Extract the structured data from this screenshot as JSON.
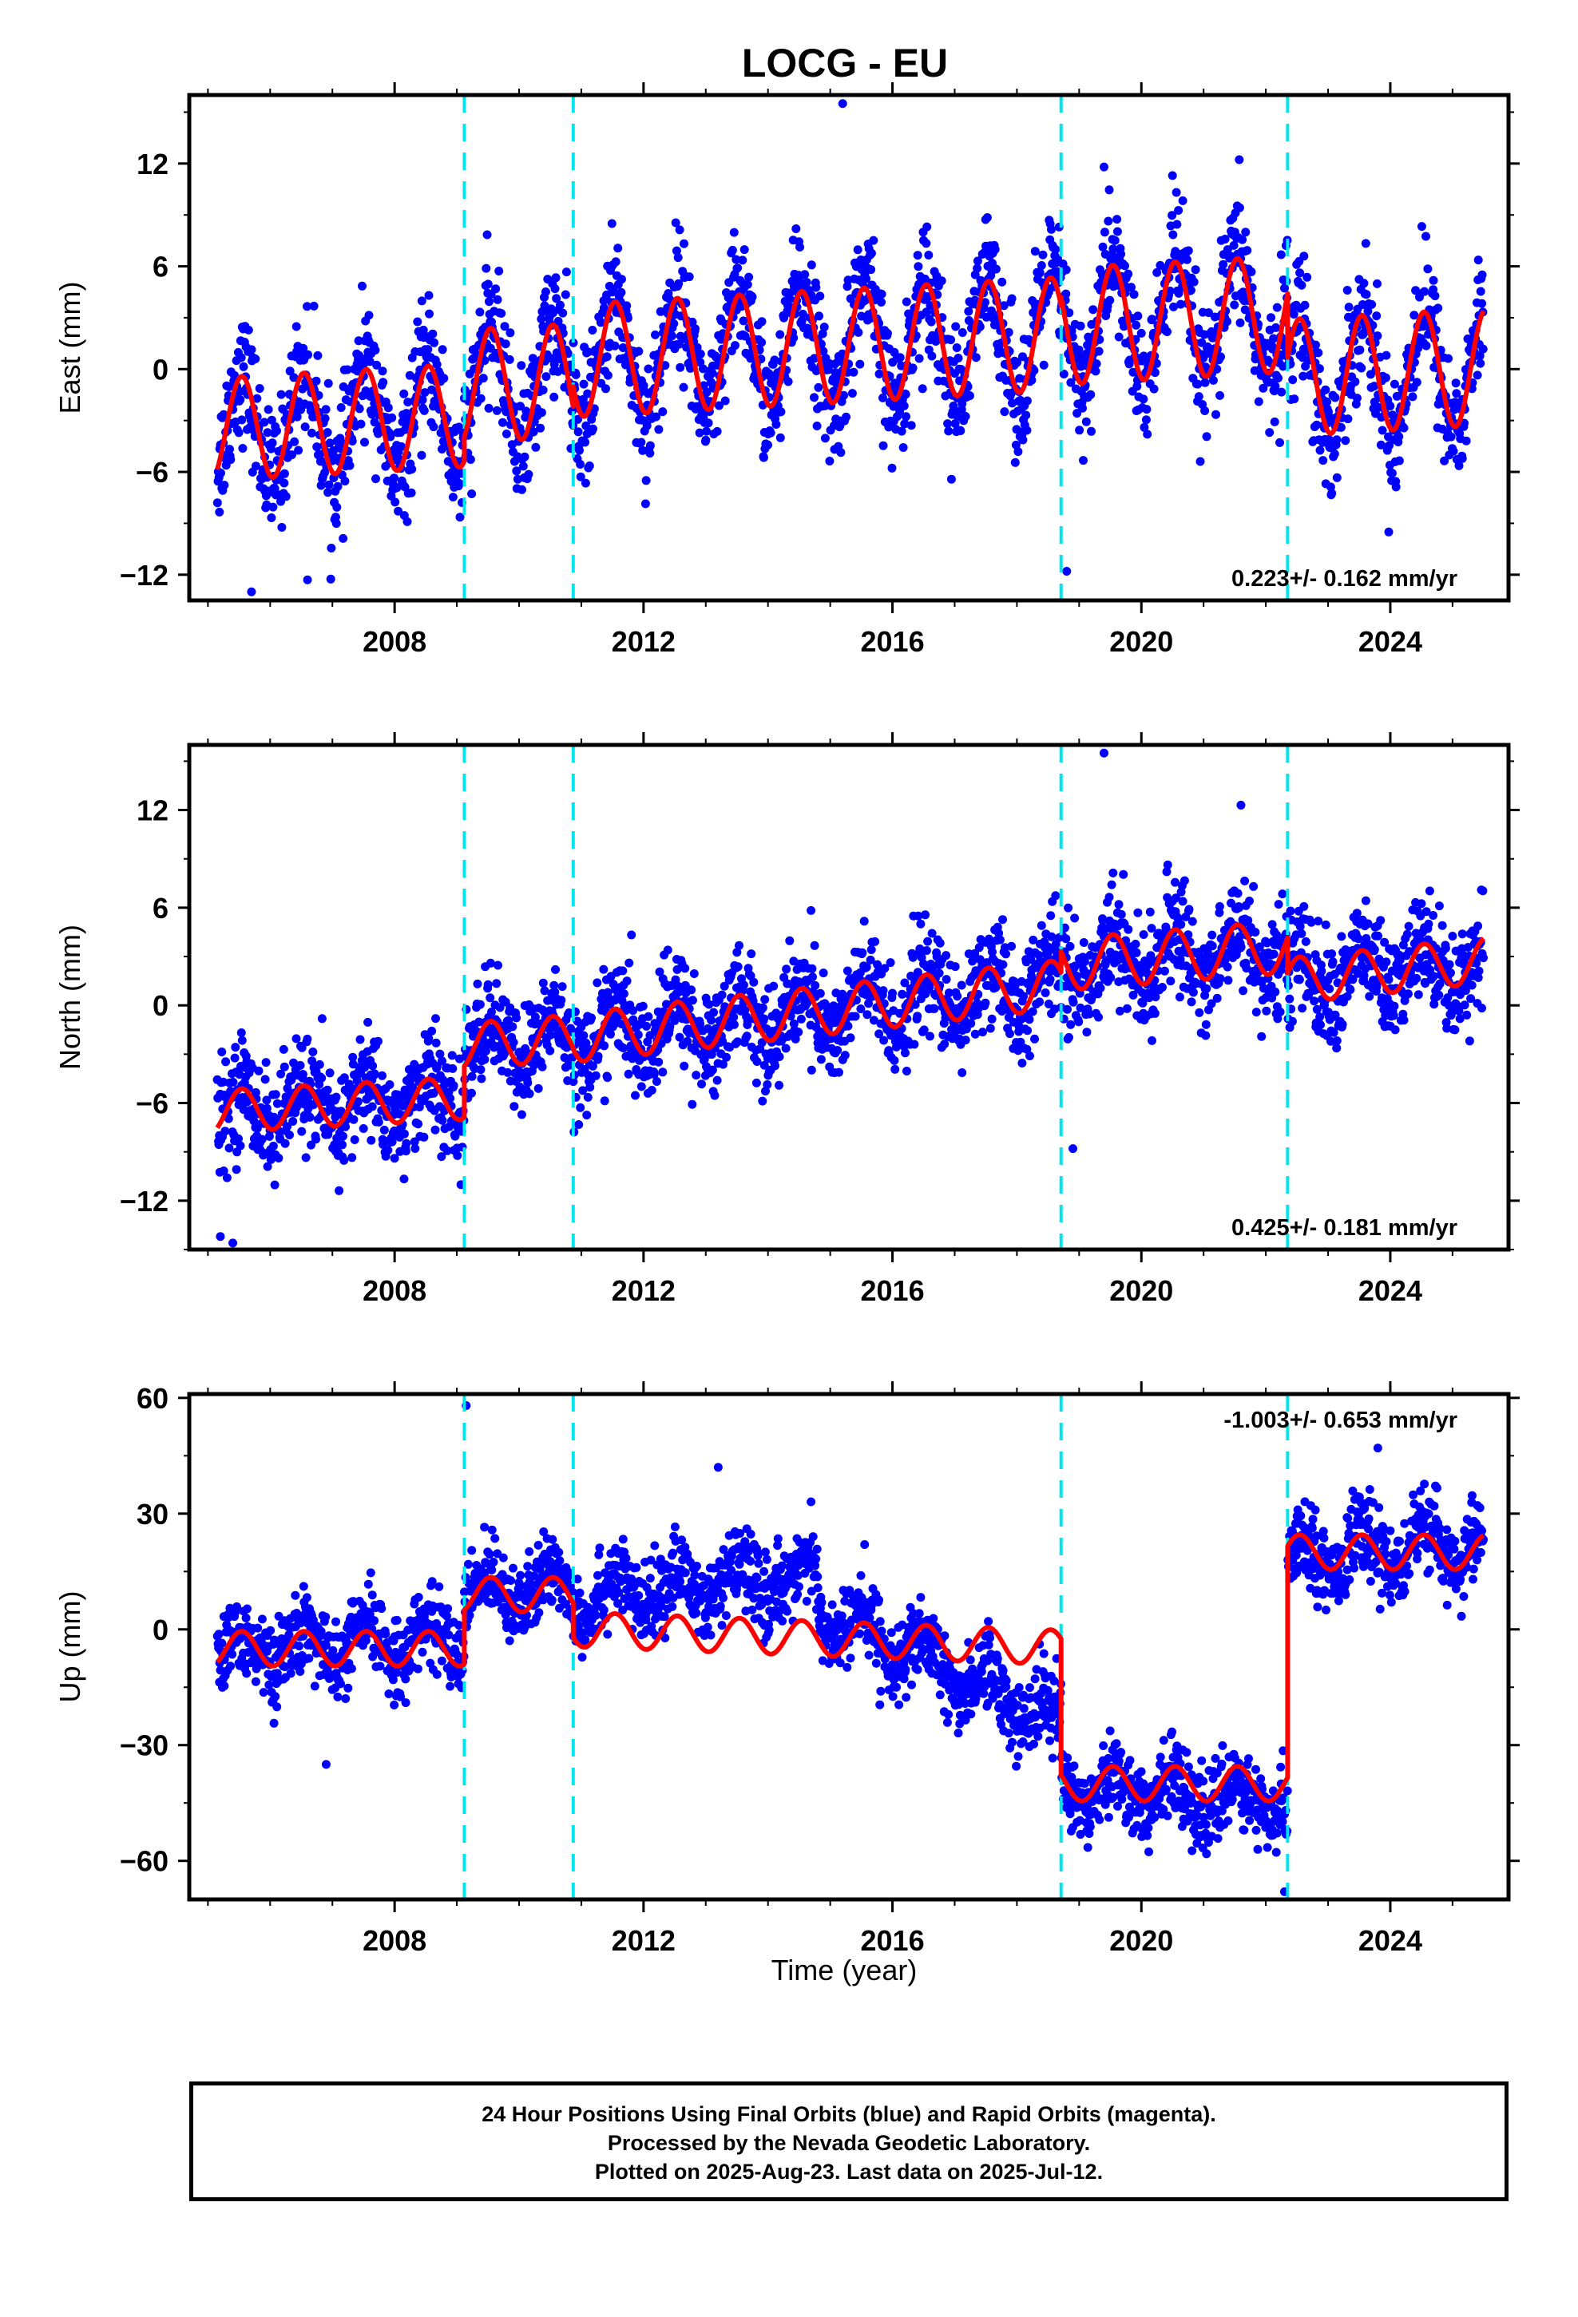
{
  "title": "LOCG - EU",
  "footer": {
    "line1": "24 Hour Positions Using Final Orbits (blue) and Rapid Orbits (magenta).",
    "line2": "Processed by the Nevada Geodetic Laboratory.",
    "line3": "Plotted on 2025-Aug-23. Last data on 2025-Jul-12."
  },
  "colors": {
    "final_orbits": "#0000ff",
    "model": "#ff0000",
    "offsets": "#00e5ee",
    "frame": "#000000"
  },
  "chart_data": [
    {
      "type": "scatter",
      "ylabel": "East (mm)",
      "xlabel": "",
      "x_ticks": [
        2008,
        2012,
        2016,
        2020,
        2024
      ],
      "y_ticks": [
        -12,
        -6,
        0,
        6,
        12
      ],
      "xlim": [
        2004.7,
        2025.9
      ],
      "ylim": [
        -13.5,
        16
      ],
      "rate": "0.223+/- 0.162 mm/yr",
      "rate_position": "bottom-right",
      "offset_epochs": [
        2009.12,
        2010.87,
        2018.71,
        2022.35
      ],
      "model_segments": [
        {
          "t0": 2005.15,
          "t1": 2009.12,
          "intercept": -3.5,
          "slope": 0.2,
          "amp": 3.0
        },
        {
          "t0": 2009.12,
          "t1": 2010.87,
          "intercept": -1.0,
          "slope": 0.2,
          "amp": 3.3
        },
        {
          "t0": 2010.87,
          "t1": 2018.71,
          "intercept": 0.5,
          "slope": 0.2,
          "amp": 3.3
        },
        {
          "t0": 2018.71,
          "t1": 2022.35,
          "intercept": 2.5,
          "slope": 0.2,
          "amp": 3.4
        },
        {
          "t0": 2022.35,
          "t1": 2025.5,
          "intercept": -0.5,
          "slope": 0.2,
          "amp": 3.4
        }
      ],
      "scatter_sd": 1.8,
      "outliers": [
        {
          "x": 2015.2,
          "y": 15.5
        },
        {
          "x": 2018.8,
          "y": -11.8
        },
        {
          "x": 2019.4,
          "y": 11.8
        },
        {
          "x": 2020.5,
          "y": 11.3
        },
        {
          "x": 2005.7,
          "y": -13
        },
        {
          "x": 2006.6,
          "y": -12.3
        }
      ]
    },
    {
      "type": "scatter",
      "ylabel": "North (mm)",
      "xlabel": "",
      "x_ticks": [
        2008,
        2012,
        2016,
        2020,
        2024
      ],
      "y_ticks": [
        -12,
        -6,
        0,
        6,
        12
      ],
      "xlim": [
        2004.7,
        2025.9
      ],
      "ylim": [
        -15,
        16
      ],
      "rate": "0.425+/- 0.181 mm/yr",
      "rate_position": "bottom-right",
      "offset_epochs": [
        2009.12,
        2010.87,
        2018.71,
        2022.35
      ],
      "model_segments": [
        {
          "t0": 2005.15,
          "t1": 2009.12,
          "intercept": -6.5,
          "slope": 0.2,
          "amp": 1.3
        },
        {
          "t0": 2009.12,
          "t1": 2010.87,
          "intercept": -2.5,
          "slope": 0.3,
          "amp": 1.4
        },
        {
          "t0": 2010.87,
          "t1": 2018.71,
          "intercept": -2.0,
          "slope": 0.42,
          "amp": 1.5
        },
        {
          "t0": 2018.71,
          "t1": 2022.35,
          "intercept": 2.5,
          "slope": 0.3,
          "amp": 1.6
        },
        {
          "t0": 2022.35,
          "t1": 2025.5,
          "intercept": 1.5,
          "slope": 0.4,
          "amp": 1.4
        }
      ],
      "scatter_sd": 1.6,
      "outliers": [
        {
          "x": 2019.4,
          "y": 15.5
        },
        {
          "x": 2021.6,
          "y": 12.3
        },
        {
          "x": 2005.2,
          "y": -14.2
        },
        {
          "x": 2005.4,
          "y": -14.6
        },
        {
          "x": 2018.9,
          "y": -8.8
        }
      ]
    },
    {
      "type": "scatter",
      "ylabel": "Up (mm)",
      "xlabel": "Time (year)",
      "x_ticks": [
        2008,
        2012,
        2016,
        2020,
        2024
      ],
      "y_ticks": [
        -60,
        -30,
        0,
        30,
        60
      ],
      "xlim": [
        2004.7,
        2025.9
      ],
      "ylim": [
        -70,
        61
      ],
      "rate": "-1.003+/- 0.653 mm/yr",
      "rate_position": "top-right",
      "offset_epochs": [
        2009.12,
        2010.87,
        2018.71,
        2022.35
      ],
      "model_segments": [
        {
          "t0": 2005.15,
          "t1": 2009.12,
          "intercept": -5,
          "slope": 0,
          "amp": 4.5
        },
        {
          "t0": 2009.12,
          "t1": 2010.87,
          "intercept": 9,
          "slope": 0,
          "amp": 4.5
        },
        {
          "t0": 2010.87,
          "t1": 2018.71,
          "intercept": 0,
          "slope": -0.6,
          "amp": 4.5
        },
        {
          "t0": 2018.71,
          "t1": 2022.35,
          "intercept": -40,
          "slope": 0,
          "amp": 4.5
        },
        {
          "t0": 2022.35,
          "t1": 2025.5,
          "intercept": 20,
          "slope": 0,
          "amp": 4.5
        }
      ],
      "point_segments": [
        {
          "t0": 2005.15,
          "t1": 2009.12,
          "intercept": -6,
          "slope": 1.0
        },
        {
          "t0": 2009.12,
          "t1": 2010.87,
          "intercept": 10,
          "slope": 0.5
        },
        {
          "t0": 2010.87,
          "t1": 2014.8,
          "intercept": 8,
          "slope": 1.5
        },
        {
          "t0": 2014.8,
          "t1": 2018.71,
          "intercept": 5,
          "slope": -7.5
        },
        {
          "t0": 2018.71,
          "t1": 2022.35,
          "intercept": -40,
          "slope": -1.5
        },
        {
          "t0": 2022.35,
          "t1": 2025.5,
          "intercept": 19,
          "slope": 1.0
        }
      ],
      "scatter_sd": 5,
      "outliers": [
        {
          "x": 2009.15,
          "y": 58
        },
        {
          "x": 2013.2,
          "y": 42
        },
        {
          "x": 2023.8,
          "y": 47
        },
        {
          "x": 2006.9,
          "y": -35
        },
        {
          "x": 2022.3,
          "y": -68
        }
      ]
    }
  ]
}
